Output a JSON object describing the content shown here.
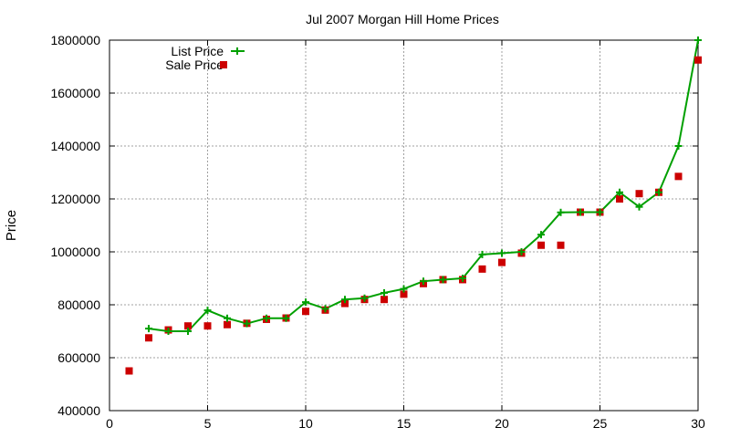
{
  "chart_data": {
    "type": "line",
    "title": "Jul 2007 Morgan Hill Home Prices",
    "xlabel": "",
    "ylabel": "Price",
    "xlim": [
      0,
      30
    ],
    "ylim": [
      400000,
      1800000
    ],
    "x_ticks": [
      0,
      5,
      10,
      15,
      20,
      25,
      30
    ],
    "y_ticks": [
      400000,
      600000,
      800000,
      1000000,
      1200000,
      1400000,
      1600000,
      1800000
    ],
    "grid": true,
    "legend_position": "top-left",
    "series": [
      {
        "name": "List Price",
        "style": "linespoints",
        "color": "#00a000",
        "x": [
          2,
          3,
          4,
          5,
          6,
          7,
          8,
          9,
          10,
          11,
          12,
          13,
          14,
          15,
          16,
          17,
          18,
          19,
          20,
          21,
          22,
          23,
          24,
          25,
          26,
          27,
          28,
          29,
          30
        ],
        "y": [
          710000,
          700000,
          700000,
          779000,
          749000,
          729000,
          749000,
          749000,
          810000,
          785000,
          820000,
          825000,
          845000,
          860000,
          889000,
          895000,
          900000,
          990000,
          995000,
          1000000,
          1065000,
          1149000,
          1150000,
          1150000,
          1225000,
          1170000,
          1225000,
          1400000,
          1800000
        ]
      },
      {
        "name": "Sale Price",
        "style": "points",
        "color": "#cc0000",
        "x": [
          1,
          2,
          3,
          4,
          5,
          6,
          7,
          8,
          9,
          10,
          11,
          12,
          13,
          14,
          15,
          16,
          17,
          18,
          19,
          20,
          21,
          22,
          23,
          24,
          25,
          26,
          27,
          28,
          29,
          30
        ],
        "y": [
          550000,
          675000,
          705000,
          720000,
          720000,
          725000,
          730000,
          745000,
          750000,
          775000,
          780000,
          805000,
          820000,
          820000,
          840000,
          880000,
          895000,
          895000,
          935000,
          960000,
          995000,
          1025000,
          1025000,
          1150000,
          1150000,
          1200000,
          1220000,
          1225000,
          1285000,
          1725000
        ]
      }
    ]
  }
}
